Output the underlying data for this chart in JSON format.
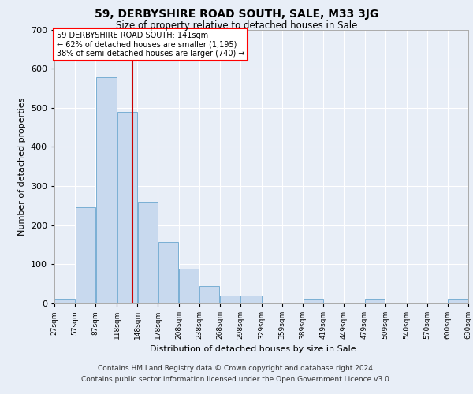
{
  "title_line1": "59, DERBYSHIRE ROAD SOUTH, SALE, M33 3JG",
  "title_line2": "Size of property relative to detached houses in Sale",
  "xlabel": "Distribution of detached houses by size in Sale",
  "ylabel": "Number of detached properties",
  "bar_color": "#c8d9ee",
  "bar_edge_color": "#7aafd4",
  "vline_color": "#cc0000",
  "vline_x": 141,
  "annotation_line1": "59 DERBYSHIRE ROAD SOUTH: 141sqm",
  "annotation_line2": "← 62% of detached houses are smaller (1,195)",
  "annotation_line3": "38% of semi-detached houses are larger (740) →",
  "bins": [
    27,
    57,
    87,
    118,
    148,
    178,
    208,
    238,
    268,
    298,
    329,
    359,
    389,
    419,
    449,
    479,
    509,
    540,
    570,
    600,
    630
  ],
  "counts": [
    10,
    245,
    578,
    490,
    260,
    158,
    88,
    45,
    20,
    20,
    0,
    0,
    10,
    0,
    0,
    10,
    0,
    0,
    0,
    10
  ],
  "xlim_min": 27,
  "xlim_max": 630,
  "ylim_min": 0,
  "ylim_max": 700,
  "yticks": [
    0,
    100,
    200,
    300,
    400,
    500,
    600,
    700
  ],
  "footnote_line1": "Contains HM Land Registry data © Crown copyright and database right 2024.",
  "footnote_line2": "Contains public sector information licensed under the Open Government Licence v3.0.",
  "bg_color": "#e8eef7"
}
